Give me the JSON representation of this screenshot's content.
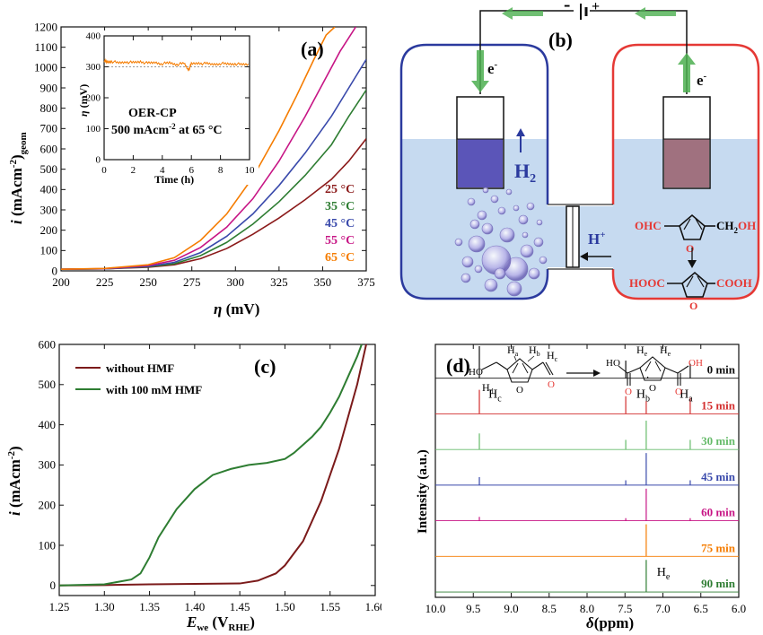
{
  "chart_data": [
    {
      "id": "a",
      "type": "line",
      "panel_label": "(a)",
      "xlabel_sym": "η",
      "xlabel_unit": "(mV)",
      "ylabel_sym": "i",
      "ylabel_unit": "(mAcm",
      "ylabel_sup": "-2",
      "ylabel_close": ")",
      "ylabel_sub": "geom",
      "xlim": [
        200,
        375
      ],
      "ylim": [
        0,
        1200
      ],
      "xticks": [
        200,
        225,
        250,
        275,
        300,
        325,
        350,
        375
      ],
      "yticks": [
        0,
        100,
        200,
        300,
        400,
        500,
        600,
        700,
        800,
        900,
        1000,
        1100,
        1200
      ],
      "series": [
        {
          "name": "25 °C",
          "color": "#8b1a1a",
          "x": [
            200,
            225,
            250,
            265,
            280,
            295,
            310,
            325,
            340,
            355,
            365,
            375
          ],
          "y": [
            8,
            10,
            18,
            30,
            60,
            110,
            180,
            260,
            350,
            450,
            540,
            650
          ]
        },
        {
          "name": "35 °C",
          "color": "#2e7d32",
          "x": [
            200,
            225,
            250,
            265,
            280,
            295,
            310,
            325,
            340,
            355,
            365,
            375
          ],
          "y": [
            8,
            10,
            20,
            35,
            75,
            140,
            230,
            340,
            470,
            620,
            760,
            890
          ]
        },
        {
          "name": "45 °C",
          "color": "#3949ab",
          "x": [
            200,
            225,
            250,
            265,
            280,
            295,
            310,
            325,
            340,
            355,
            365,
            375
          ],
          "y": [
            8,
            10,
            22,
            42,
            90,
            170,
            280,
            420,
            580,
            760,
            900,
            1040
          ]
        },
        {
          "name": "55 °C",
          "color": "#c71585",
          "x": [
            200,
            225,
            250,
            265,
            280,
            295,
            310,
            325,
            340,
            350,
            360,
            369
          ],
          "y": [
            8,
            11,
            26,
            52,
            115,
            215,
            355,
            540,
            760,
            920,
            1080,
            1230
          ]
        },
        {
          "name": "65 °C",
          "color": "#f57c00",
          "x": [
            200,
            225,
            250,
            265,
            280,
            295,
            310,
            325,
            335,
            345,
            352,
            357
          ],
          "y": [
            8,
            12,
            30,
            65,
            150,
            280,
            460,
            690,
            860,
            1040,
            1160,
            1230
          ]
        }
      ],
      "inset": {
        "type": "line",
        "xlabel": "Time (h)",
        "ylabel_sym": "η",
        "ylabel_unit": "(mV)",
        "xlim": [
          0,
          10
        ],
        "ylim": [
          0,
          400
        ],
        "xticks": [
          0,
          2,
          4,
          6,
          8,
          10
        ],
        "yticks": [
          0,
          100,
          200,
          300,
          400
        ],
        "text1": "OER-CP",
        "text2a": "500 mAcm",
        "text2sup": "-2",
        "text2b": " at 65 °C",
        "color": "#f57c00",
        "x": [
          0,
          0.2,
          0.5,
          1,
          1.5,
          2,
          2.5,
          3,
          3.5,
          4,
          4.5,
          5,
          5.5,
          5.8,
          6,
          6.5,
          7,
          7.5,
          8,
          8.5,
          9,
          9.5,
          10
        ],
        "y": [
          320,
          315,
          318,
          312,
          316,
          313,
          317,
          311,
          314,
          310,
          313,
          308,
          311,
          290,
          309,
          312,
          310,
          308,
          311,
          309,
          310,
          307,
          309
        ]
      }
    },
    {
      "id": "c",
      "type": "line",
      "panel_label": "(c)",
      "xlabel_sym": "E",
      "xlabel_sub": "we",
      "xlabel_unit": " (V",
      "xlabel_unit_sub": "RHE",
      "xlabel_close": ")",
      "ylabel_sym": "i",
      "ylabel_unit": " (mAcm",
      "ylabel_sup": "-2",
      "ylabel_close": ")",
      "xlim": [
        1.25,
        1.6
      ],
      "ylim": [
        -25,
        600
      ],
      "xticks": [
        "1.25",
        "1.30",
        "1.35",
        "1.40",
        "1.45",
        "1.50",
        "1.55",
        "1.60"
      ],
      "yticks": [
        0,
        100,
        200,
        300,
        400,
        500,
        600
      ],
      "series": [
        {
          "name": "without HMF",
          "color": "#7b1a1a",
          "x": [
            1.25,
            1.3,
            1.35,
            1.4,
            1.45,
            1.47,
            1.49,
            1.5,
            1.52,
            1.54,
            1.56,
            1.58,
            1.59
          ],
          "y": [
            0,
            1,
            3,
            4,
            5,
            12,
            30,
            50,
            110,
            210,
            340,
            500,
            600
          ]
        },
        {
          "name": "with 100 mM HMF",
          "color": "#2e7d32",
          "x": [
            1.25,
            1.3,
            1.33,
            1.34,
            1.35,
            1.36,
            1.38,
            1.4,
            1.42,
            1.44,
            1.46,
            1.48,
            1.5,
            1.51,
            1.52,
            1.53,
            1.54,
            1.55,
            1.56,
            1.57,
            1.58,
            1.585
          ],
          "y": [
            0,
            3,
            15,
            30,
            70,
            120,
            190,
            240,
            275,
            290,
            300,
            305,
            315,
            330,
            350,
            370,
            395,
            430,
            470,
            520,
            570,
            600
          ]
        }
      ]
    },
    {
      "id": "d",
      "type": "line",
      "panel_label": "(d)",
      "xlabel_sym": "δ",
      "xlabel_unit": "(ppm)",
      "ylabel": "Intensity (a.u.)",
      "xlim": [
        10.0,
        6.0
      ],
      "xticks": [
        "10.0",
        "9.5",
        "9.0",
        "8.5",
        "8.0",
        "7.5",
        "7.0",
        "6.5",
        "6.0"
      ],
      "peak_labels": [
        {
          "base": "H",
          "sub": "c",
          "ppm": 9.3,
          "row": 1
        },
        {
          "base": "H",
          "sub": "b",
          "ppm": 7.35,
          "row": 1
        },
        {
          "base": "H",
          "sub": "a",
          "ppm": 6.78,
          "row": 1
        },
        {
          "base": "H",
          "sub": "e",
          "ppm": 7.08,
          "row": 6
        }
      ],
      "structure": {
        "ho": "HO",
        "hd": "H",
        "hd_sub": "d",
        "ha": "H",
        "ha_sub": "a",
        "hb": "H",
        "hb_sub": "b",
        "hc": "H",
        "hc_sub": "c",
        "ring_o1": "O",
        "ald_o": "O",
        "prod_ho1": "HO",
        "prod_oh2": "OH",
        "prod_o1": "O",
        "prod_o2": "O",
        "prod_o3": "O",
        "he1": "H",
        "he1_sub": "e",
        "he2": "H",
        "he2_sub": "e"
      },
      "series": [
        {
          "name": "0 min",
          "color": "#111111",
          "peaks": [
            [
              9.42,
              1.0
            ],
            [
              7.49,
              0.55
            ],
            [
              6.64,
              0.45
            ],
            [
              7.2,
              0.05
            ]
          ]
        },
        {
          "name": "15 min",
          "color": "#d32f2f",
          "peaks": [
            [
              9.42,
              0.75
            ],
            [
              7.49,
              0.55
            ],
            [
              7.22,
              0.4
            ],
            [
              6.64,
              0.5
            ]
          ]
        },
        {
          "name": "30 min",
          "color": "#66bb6a",
          "peaks": [
            [
              9.42,
              0.5
            ],
            [
              7.49,
              0.3
            ],
            [
              7.22,
              0.9
            ],
            [
              6.64,
              0.3
            ]
          ]
        },
        {
          "name": "45 min",
          "color": "#3949ab",
          "peaks": [
            [
              9.42,
              0.25
            ],
            [
              7.49,
              0.15
            ],
            [
              7.22,
              1.0
            ],
            [
              6.64,
              0.15
            ]
          ]
        },
        {
          "name": "60 min",
          "color": "#c71585",
          "peaks": [
            [
              9.42,
              0.12
            ],
            [
              7.49,
              0.08
            ],
            [
              7.22,
              1.0
            ],
            [
              6.64,
              0.08
            ]
          ]
        },
        {
          "name": "75 min",
          "color": "#f57c00",
          "peaks": [
            [
              7.22,
              1.0
            ]
          ]
        },
        {
          "name": "90 min",
          "color": "#2e7d32",
          "peaks": [
            [
              7.22,
              1.0
            ]
          ]
        }
      ]
    }
  ],
  "diagram_b": {
    "panel_label": "(b)",
    "minus": "-",
    "plus": "+",
    "electron_left": "e",
    "electron_left_sup": "-",
    "electron_right": "e",
    "electron_right_sup": "-",
    "h2": "H",
    "h2_sub": "2",
    "hplus": "H",
    "hplus_sup": "+",
    "hmf_left": "OHC",
    "hmf_o": "O",
    "hmf_right": "CH",
    "hmf_right_sub": "2",
    "hmf_right_end": "OH",
    "hmf_oh_o": "O",
    "fdca_left": "HOOC",
    "fdca_o": "O",
    "fdca_right": "COOH",
    "color_cathode_cell": "#2b3a9e",
    "color_anode_cell": "#e53935",
    "color_electrolyte": "#c6daf0",
    "color_arrow": "#4caf50",
    "color_cathode_fill": "#5b55b8",
    "color_anode_fill": "#a0717f"
  }
}
